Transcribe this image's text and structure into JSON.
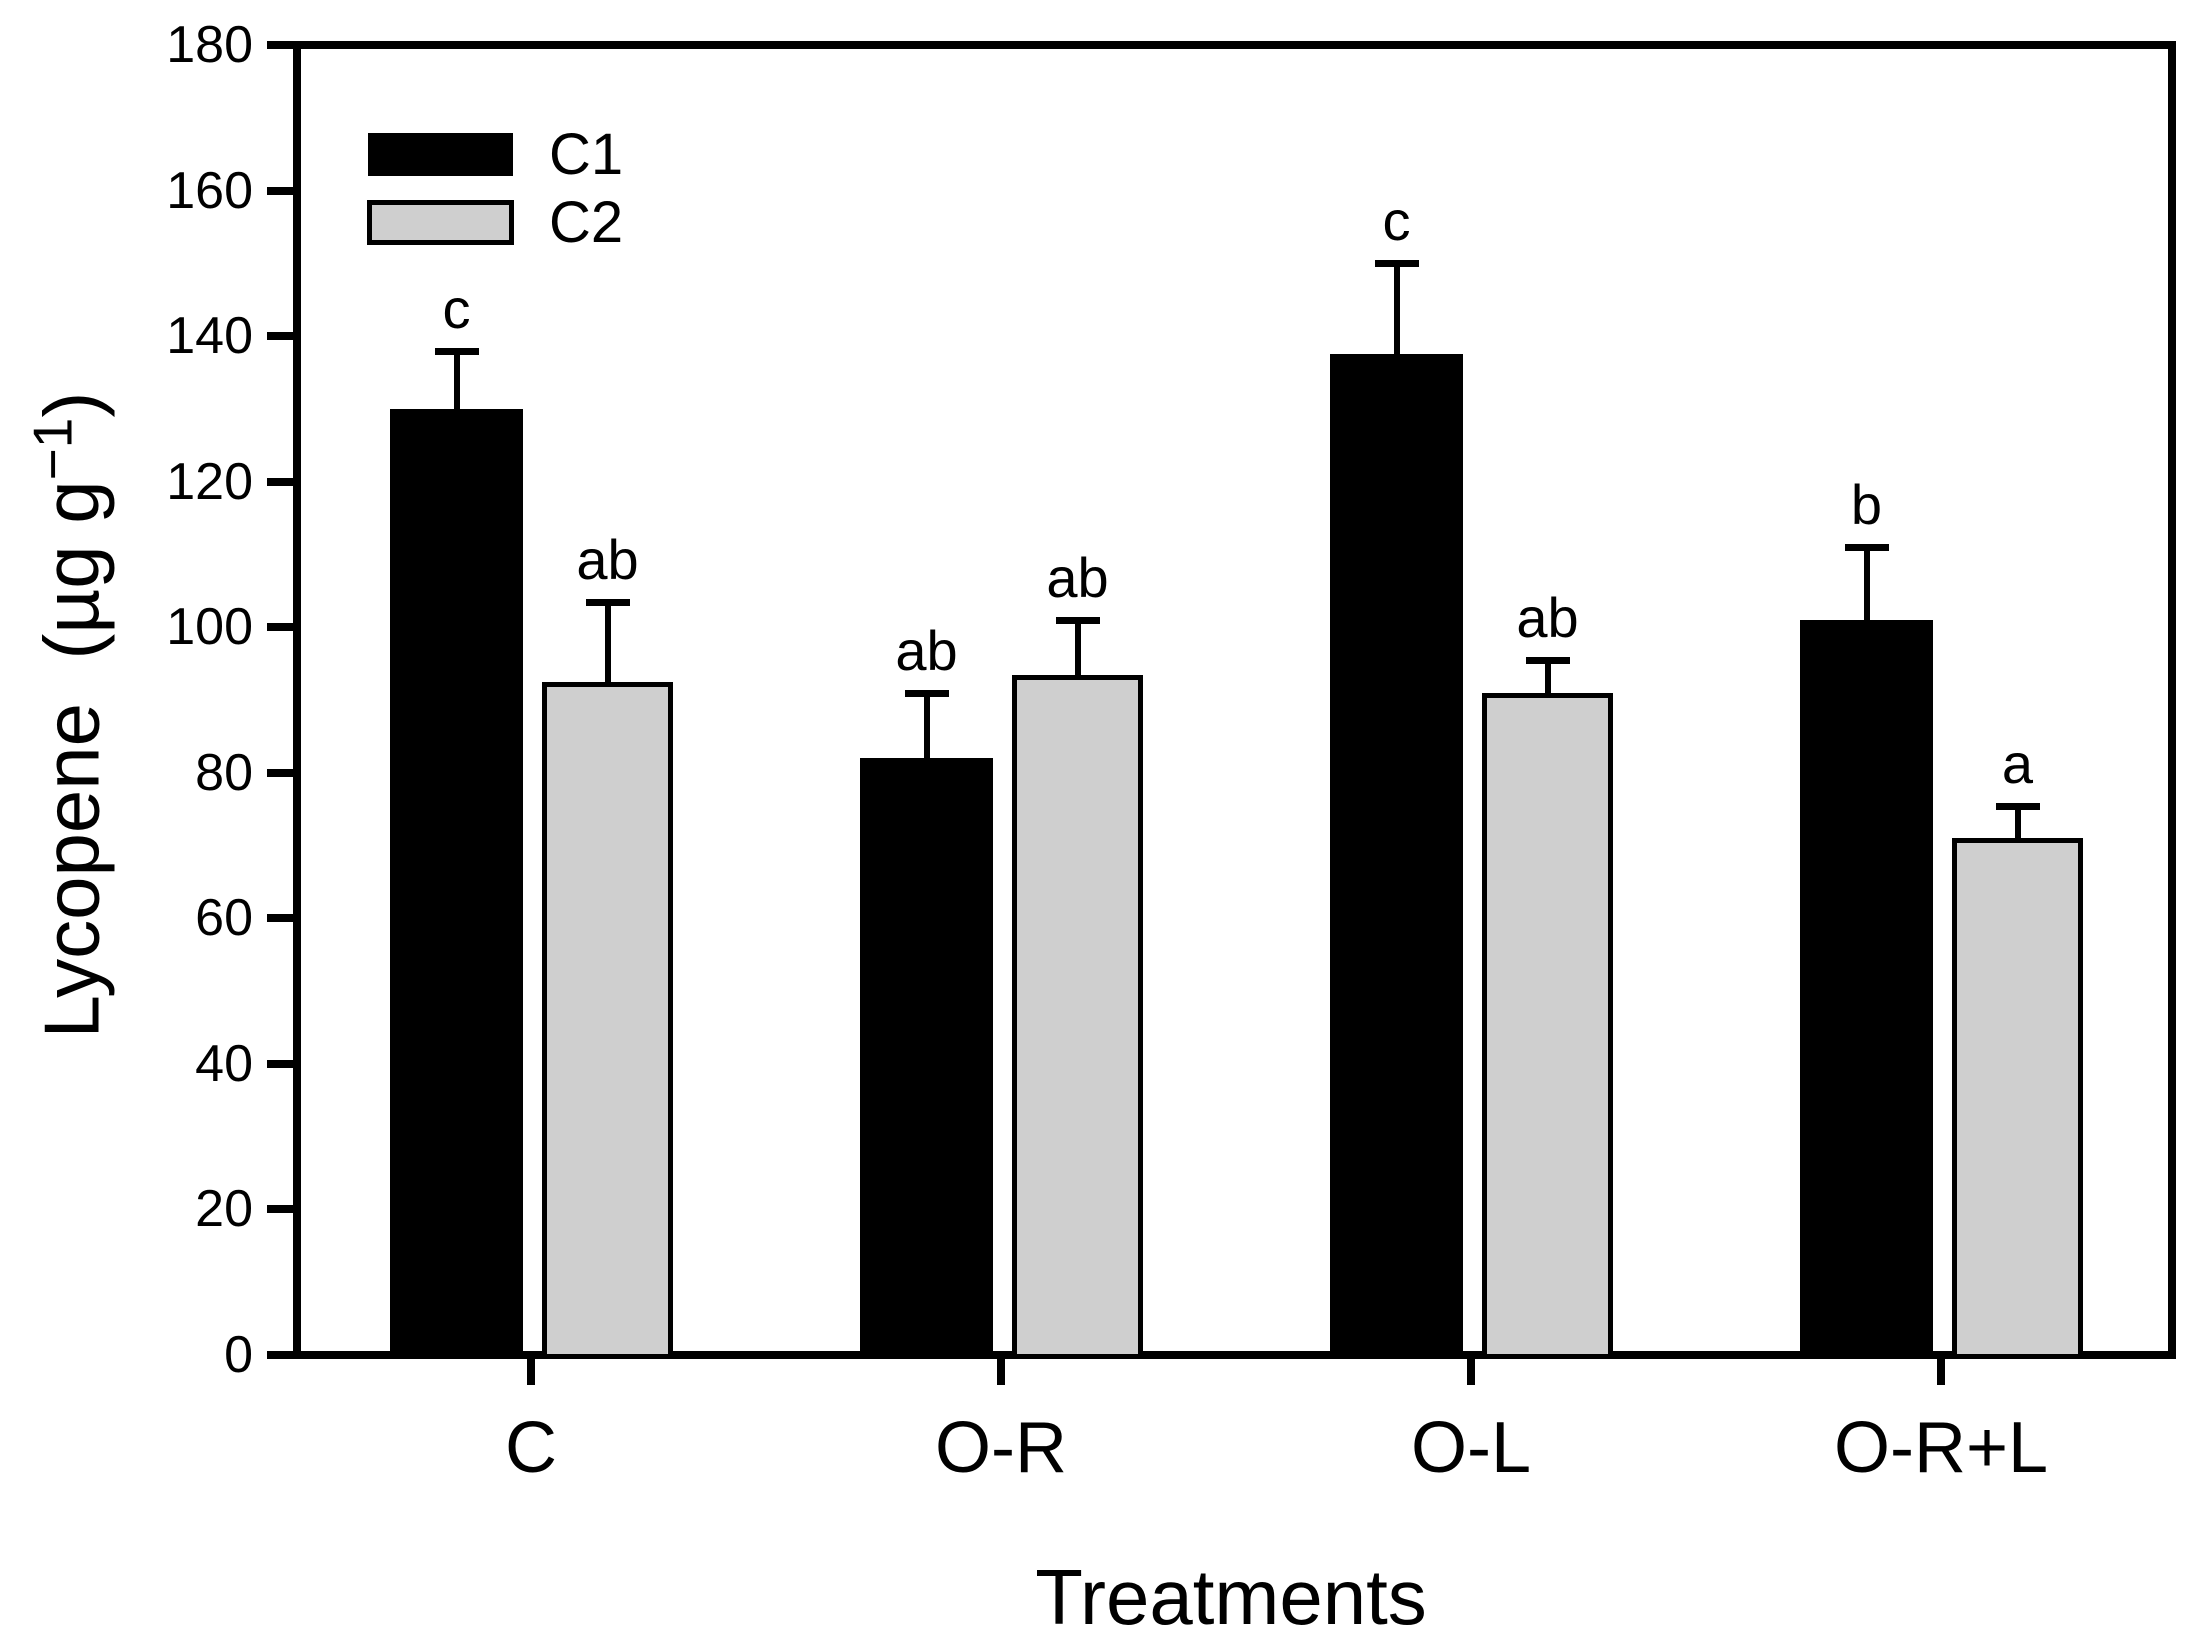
{
  "figure": {
    "background": "#ffffff",
    "bar_black": "#000000",
    "bar_gray": "#cfcfcf"
  },
  "labels": {
    "ylabel_prefix": "Lycopene  (µg g",
    "ylabel_sup": "−1",
    "ylabel_suffix": ")"
  },
  "chart_data": {
    "type": "bar",
    "title": "",
    "xlabel": "Treatments",
    "ylabel": "Lycopene (µg g−1)",
    "categories": [
      "C",
      "O-R",
      "O-L",
      "O-R+L"
    ],
    "series": [
      {
        "name": "C1",
        "color": "#000000",
        "values": [
          130,
          82,
          137.5,
          101
        ],
        "error_up": [
          8,
          9,
          12.5,
          10
        ],
        "sig_letters": [
          "c",
          "ab",
          "c",
          "b"
        ]
      },
      {
        "name": "C2",
        "color": "#cfcfcf",
        "values": [
          92.5,
          93.5,
          91,
          71
        ],
        "error_up": [
          11,
          7.5,
          4.5,
          4.5
        ],
        "sig_letters": [
          "ab",
          "ab",
          "ab",
          "a"
        ]
      }
    ],
    "ylim": [
      0,
      180
    ],
    "yticks": [
      0,
      20,
      40,
      60,
      80,
      100,
      120,
      140,
      160,
      180
    ],
    "grid": false,
    "legend_position": "upper-left-inside"
  }
}
